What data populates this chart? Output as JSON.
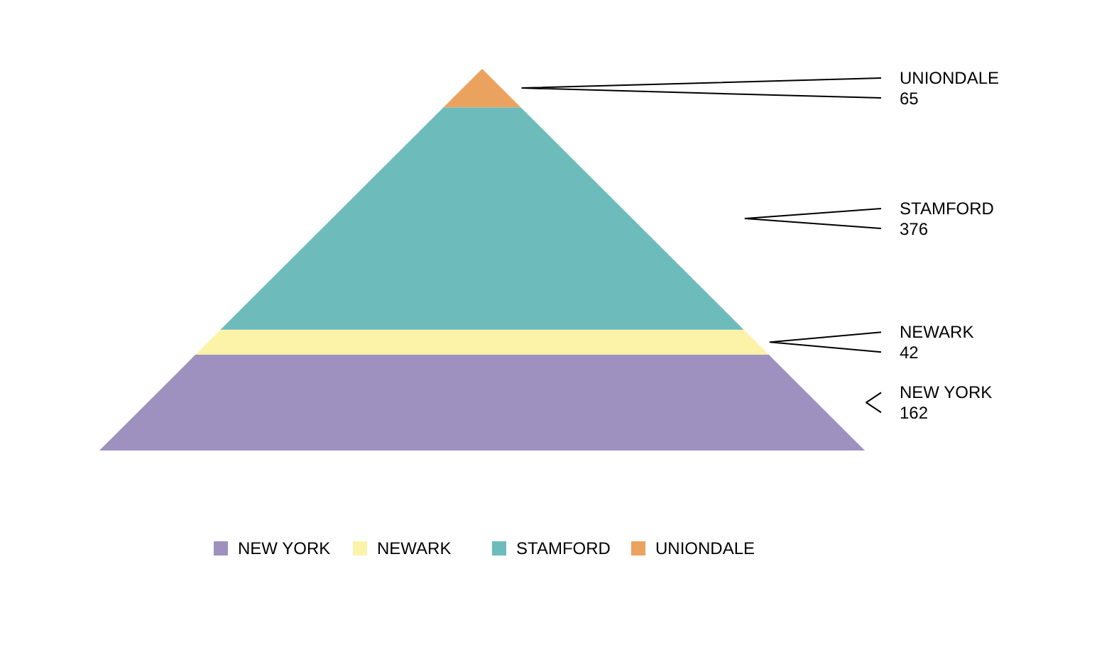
{
  "chart_data": {
    "type": "other",
    "series": [
      {
        "name": "NEW YORK",
        "color": "#9e91bf",
        "values": [
          162
        ]
      },
      {
        "name": "NEWARK",
        "color": "#fcf3a8",
        "values": [
          42
        ]
      },
      {
        "name": "STAMFORD",
        "color": "#6dbbbb",
        "values": [
          376
        ]
      },
      {
        "name": "UNIONDALE",
        "color": "#eca25f",
        "values": [
          65
        ]
      }
    ],
    "data_labels": true,
    "legend": "bottom"
  }
}
